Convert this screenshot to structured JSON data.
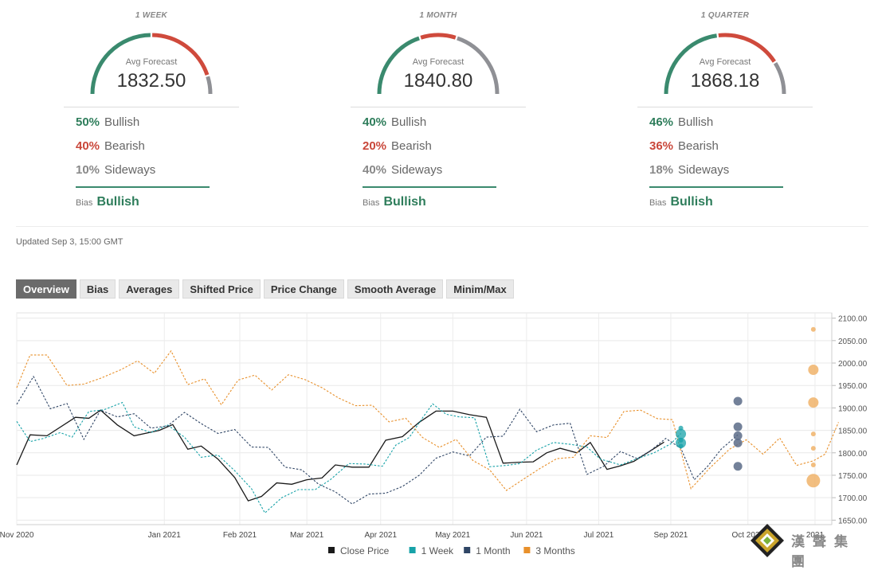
{
  "panels": [
    {
      "title": "1 WEEK",
      "avg_label": "Avg Forecast",
      "avg_value": "1832.50",
      "gauge": {
        "bullish": 0.5,
        "bearish": 0.4,
        "sideways": 0.1
      },
      "stats": [
        {
          "pct": "50%",
          "label": "Bullish",
          "color": "#2e7d5b"
        },
        {
          "pct": "40%",
          "label": "Bearish",
          "color": "#c9473a"
        },
        {
          "pct": "10%",
          "label": "Sideways",
          "color": "#888888"
        }
      ],
      "bias_label": "Bias",
      "bias_value": "Bullish"
    },
    {
      "title": "1 MONTH",
      "avg_label": "Avg Forecast",
      "avg_value": "1840.80",
      "gauge": {
        "bullish": 0.4,
        "bearish": 0.2,
        "sideways": 0.4
      },
      "stats": [
        {
          "pct": "40%",
          "label": "Bullish",
          "color": "#2e7d5b"
        },
        {
          "pct": "20%",
          "label": "Bearish",
          "color": "#c9473a"
        },
        {
          "pct": "40%",
          "label": "Sideways",
          "color": "#888888"
        }
      ],
      "bias_label": "Bias",
      "bias_value": "Bullish"
    },
    {
      "title": "1 QUARTER",
      "avg_label": "Avg Forecast",
      "avg_value": "1868.18",
      "gauge": {
        "bullish": 0.46,
        "bearish": 0.36,
        "sideways": 0.18
      },
      "stats": [
        {
          "pct": "46%",
          "label": "Bullish",
          "color": "#2e7d5b"
        },
        {
          "pct": "36%",
          "label": "Bearish",
          "color": "#c9473a"
        },
        {
          "pct": "18%",
          "label": "Sideways",
          "color": "#888888"
        }
      ],
      "bias_label": "Bias",
      "bias_value": "Bullish"
    }
  ],
  "colors": {
    "bullish": "#3a8a6e",
    "bearish": "#cf4a3c",
    "sideways": "#8f9095"
  },
  "updated": "Updated Sep 3, 15:00 GMT",
  "tabs": [
    "Overview",
    "Bias",
    "Averages",
    "Shifted Price",
    "Price Change",
    "Smooth Average",
    "Minim/Max"
  ],
  "active_tab": "Overview",
  "watermark": {
    "text": "漢聲集團"
  },
  "chart_data": {
    "type": "line",
    "y_ticks": [
      "2100.00",
      "2050.00",
      "2000.00",
      "1950.00",
      "1900.00",
      "1850.00",
      "1800.00",
      "1750.00",
      "1700.00",
      "1650.00"
    ],
    "ylim": [
      1640,
      2110
    ],
    "x_months": [
      {
        "label": "Nov 2020",
        "i": 0
      },
      {
        "label": "Jan 2021",
        "i": 8.8
      },
      {
        "label": "Feb 2021",
        "i": 13.3
      },
      {
        "label": "Mar 2021",
        "i": 17.3
      },
      {
        "label": "Apr 2021",
        "i": 21.7
      },
      {
        "label": "May 2021",
        "i": 26.0
      },
      {
        "label": "Jun 2021",
        "i": 30.4
      },
      {
        "label": "Jul 2021",
        "i": 34.7
      },
      {
        "label": "Sep 2021",
        "i": 39.0
      },
      {
        "label": "Oct 2021",
        "i": 43.6
      },
      {
        "label": "2021",
        "i": 47.6
      }
    ],
    "x_max_index": 48.6,
    "series": [
      {
        "name": "Close Price",
        "color": "#1a1a1a",
        "dashed": false,
        "points": [
          [
            0,
            1773
          ],
          [
            0.8,
            1840
          ],
          [
            1.8,
            1838
          ],
          [
            3.5,
            1879
          ],
          [
            4.3,
            1877
          ],
          [
            5,
            1895
          ],
          [
            6,
            1862
          ],
          [
            7,
            1838
          ],
          [
            8.5,
            1850
          ],
          [
            9.3,
            1863
          ],
          [
            10.2,
            1808
          ],
          [
            11,
            1815
          ],
          [
            12,
            1786
          ],
          [
            13,
            1745
          ],
          [
            13.8,
            1693
          ],
          [
            14.6,
            1703
          ],
          [
            15.5,
            1733
          ],
          [
            16.4,
            1730
          ],
          [
            17.3,
            1740
          ],
          [
            18.2,
            1744
          ],
          [
            19,
            1773
          ],
          [
            20,
            1768
          ],
          [
            21,
            1768
          ],
          [
            22,
            1828
          ],
          [
            23,
            1836
          ],
          [
            24,
            1868
          ],
          [
            25,
            1893
          ],
          [
            26,
            1893
          ],
          [
            27,
            1885
          ],
          [
            28,
            1879
          ],
          [
            29,
            1777
          ],
          [
            30,
            1779
          ],
          [
            30.8,
            1780
          ],
          [
            31.6,
            1800
          ],
          [
            32.4,
            1810
          ],
          [
            33.4,
            1800
          ],
          [
            34.2,
            1823
          ],
          [
            35.2,
            1763
          ],
          [
            36,
            1771
          ],
          [
            36.8,
            1781
          ],
          [
            37.6,
            1800
          ],
          [
            38.6,
            1824
          ]
        ]
      },
      {
        "name": "1 Week",
        "color": "#17a2a8",
        "dashed": true,
        "points": [
          [
            0,
            1870
          ],
          [
            0.8,
            1825
          ],
          [
            1.6,
            1832
          ],
          [
            2.6,
            1845
          ],
          [
            3.3,
            1835
          ],
          [
            4.3,
            1892
          ],
          [
            5.2,
            1896
          ],
          [
            6.3,
            1912
          ],
          [
            7,
            1858
          ],
          [
            8,
            1845
          ],
          [
            9,
            1862
          ],
          [
            10,
            1835
          ],
          [
            11,
            1790
          ],
          [
            12,
            1795
          ],
          [
            13,
            1760
          ],
          [
            14,
            1720
          ],
          [
            14.8,
            1666
          ],
          [
            15.8,
            1700
          ],
          [
            16.8,
            1718
          ],
          [
            17.8,
            1718
          ],
          [
            18.7,
            1740
          ],
          [
            19.8,
            1776
          ],
          [
            20.8,
            1775
          ],
          [
            21.8,
            1770
          ],
          [
            22.6,
            1817
          ],
          [
            23.4,
            1834
          ],
          [
            24.2,
            1878
          ],
          [
            24.8,
            1909
          ],
          [
            25.6,
            1886
          ],
          [
            26.4,
            1880
          ],
          [
            27.3,
            1878
          ],
          [
            28.2,
            1769
          ],
          [
            29.2,
            1772
          ],
          [
            30,
            1776
          ],
          [
            31,
            1806
          ],
          [
            32,
            1823
          ],
          [
            33,
            1819
          ],
          [
            34,
            1813
          ],
          [
            34.8,
            1786
          ],
          [
            36,
            1773
          ],
          [
            37,
            1787
          ],
          [
            38,
            1800
          ],
          [
            39,
            1820
          ],
          [
            39.6,
            1843
          ]
        ]
      },
      {
        "name": "1 Month",
        "color": "#2f4565",
        "dashed": true,
        "points": [
          [
            0,
            1908
          ],
          [
            1,
            1970
          ],
          [
            2,
            1898
          ],
          [
            3,
            1910
          ],
          [
            4,
            1830
          ],
          [
            5,
            1895
          ],
          [
            6,
            1880
          ],
          [
            7,
            1887
          ],
          [
            8,
            1855
          ],
          [
            9,
            1860
          ],
          [
            10,
            1890
          ],
          [
            11,
            1865
          ],
          [
            12,
            1843
          ],
          [
            13,
            1852
          ],
          [
            14,
            1813
          ],
          [
            15,
            1812
          ],
          [
            16,
            1768
          ],
          [
            17,
            1762
          ],
          [
            18,
            1730
          ],
          [
            19,
            1713
          ],
          [
            20,
            1686
          ],
          [
            21,
            1708
          ],
          [
            22,
            1710
          ],
          [
            23,
            1725
          ],
          [
            24,
            1750
          ],
          [
            25,
            1788
          ],
          [
            26,
            1802
          ],
          [
            27,
            1793
          ],
          [
            28,
            1835
          ],
          [
            29,
            1837
          ],
          [
            30,
            1897
          ],
          [
            31,
            1847
          ],
          [
            32,
            1862
          ],
          [
            33,
            1866
          ],
          [
            34,
            1752
          ],
          [
            35,
            1770
          ],
          [
            36,
            1803
          ],
          [
            37,
            1787
          ],
          [
            37.8,
            1805
          ],
          [
            38.7,
            1832
          ],
          [
            39.6,
            1810
          ],
          [
            40.4,
            1740
          ],
          [
            41.2,
            1770
          ],
          [
            42,
            1808
          ],
          [
            43,
            1840
          ]
        ]
      },
      {
        "name": "3 Months",
        "color": "#e8902b",
        "dashed": true,
        "points": [
          [
            0,
            1945
          ],
          [
            0.8,
            2018
          ],
          [
            1.8,
            2018
          ],
          [
            3,
            1950
          ],
          [
            4,
            1953
          ],
          [
            5,
            1966
          ],
          [
            6.2,
            1985
          ],
          [
            7.2,
            2005
          ],
          [
            8.2,
            1977
          ],
          [
            9.2,
            2027
          ],
          [
            10.2,
            1952
          ],
          [
            11.2,
            1965
          ],
          [
            12.2,
            1907
          ],
          [
            13.2,
            1962
          ],
          [
            14.2,
            1973
          ],
          [
            15.2,
            1940
          ],
          [
            16.2,
            1974
          ],
          [
            17.2,
            1963
          ],
          [
            18.2,
            1945
          ],
          [
            19.2,
            1922
          ],
          [
            20.2,
            1905
          ],
          [
            21.2,
            1906
          ],
          [
            22.2,
            1869
          ],
          [
            23.2,
            1877
          ],
          [
            24.2,
            1834
          ],
          [
            25.2,
            1812
          ],
          [
            26.2,
            1830
          ],
          [
            27.2,
            1783
          ],
          [
            28.2,
            1762
          ],
          [
            29.2,
            1716
          ],
          [
            30.2,
            1741
          ],
          [
            31.2,
            1765
          ],
          [
            32.2,
            1787
          ],
          [
            33.2,
            1790
          ],
          [
            34.2,
            1838
          ],
          [
            35.2,
            1834
          ],
          [
            36.2,
            1892
          ],
          [
            37.2,
            1895
          ],
          [
            38.2,
            1876
          ],
          [
            39.1,
            1874
          ],
          [
            40.2,
            1720
          ],
          [
            41.3,
            1765
          ],
          [
            42.5,
            1808
          ],
          [
            43.5,
            1829
          ],
          [
            44.5,
            1797
          ],
          [
            45.5,
            1833
          ],
          [
            46.5,
            1772
          ],
          [
            47.5,
            1782
          ],
          [
            48.2,
            1797
          ],
          [
            49,
            1868
          ]
        ]
      }
    ],
    "forecast_points": [
      {
        "series": "1 Week",
        "color": "#17a2a8",
        "i": 39.6,
        "values": [
          1815,
          1842,
          1828,
          1855,
          1822
        ],
        "big": [
          1842,
          1822
        ]
      },
      {
        "series": "1 Month",
        "color": "#5b6b87",
        "i": 43,
        "values": [
          1915,
          1858,
          1838,
          1822,
          1770
        ],
        "big": []
      },
      {
        "series": "3 Months",
        "color": "#f0b36a",
        "i": 47.5,
        "values": [
          2075,
          1985,
          1912,
          1842,
          1810,
          1773,
          1738
        ],
        "big": [
          1985,
          1912,
          1738
        ]
      }
    ],
    "legend": [
      "Close Price",
      "1 Week",
      "1 Month",
      "3 Months"
    ]
  }
}
